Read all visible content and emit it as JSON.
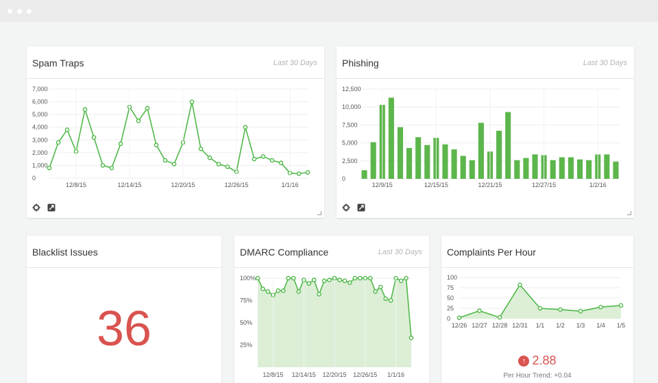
{
  "window": {
    "dots": 3
  },
  "spam_traps": {
    "title": "Spam Traps",
    "subtitle": "Last 30 Days",
    "icons": [
      "gear-icon",
      "expand-icon"
    ],
    "chart_data": {
      "type": "line",
      "title": "",
      "ylim": [
        0,
        7000
      ],
      "yticks": [
        "7,000",
        "6,000",
        "5,000",
        "4,000",
        "3,000",
        "2,000",
        "1,000",
        "0"
      ],
      "xticks": [
        "12/8/15",
        "12/14/15",
        "12/20/15",
        "12/26/15",
        "1/1/16"
      ],
      "xtick_positions": [
        3,
        9,
        15,
        21,
        27
      ],
      "values": [
        800,
        2800,
        3800,
        2100,
        5400,
        3200,
        1000,
        800,
        2700,
        5600,
        4500,
        5500,
        2600,
        1400,
        1100,
        2800,
        6000,
        2300,
        1600,
        1100,
        900,
        500,
        4000,
        1500,
        1700,
        1400,
        1200,
        400,
        350,
        450
      ],
      "color": "#4fb848"
    }
  },
  "phishing": {
    "title": "Phishing",
    "subtitle": "Last 30 Days",
    "icons": [
      "gear-icon",
      "expand-icon"
    ],
    "chart_data": {
      "type": "bar",
      "title": "",
      "ylim": [
        0,
        12500
      ],
      "yticks": [
        "12,500",
        "10,000",
        "7,500",
        "5,000",
        "2,500",
        "0"
      ],
      "xticks": [
        "12/9/15",
        "12/15/15",
        "12/21/15",
        "12/27/15",
        "1/2/16"
      ],
      "xtick_positions": [
        2,
        8,
        14,
        20,
        26
      ],
      "values": [
        1200,
        5100,
        10300,
        11300,
        7200,
        4300,
        5800,
        4700,
        5700,
        4800,
        4100,
        3200,
        2600,
        7800,
        3800,
        6700,
        9300,
        2600,
        2900,
        3400,
        3300,
        2600,
        3000,
        3000,
        2700,
        2600,
        3400,
        3400,
        2400
      ],
      "color": "#5cb64c"
    }
  },
  "blacklist": {
    "title": "Blacklist Issues",
    "value": "36"
  },
  "dmarc": {
    "title": "DMARC Compliance",
    "subtitle": "Last 30 Days",
    "chart_data": {
      "type": "area",
      "title": "",
      "ylim": [
        0,
        100
      ],
      "yticks": [
        "100%",
        "75%",
        "50%",
        "25%"
      ],
      "xticks": [
        "12/8/15",
        "12/14/15",
        "12/20/15",
        "12/26/15",
        "1/1/16"
      ],
      "xtick_positions": [
        3,
        9,
        15,
        21,
        27
      ],
      "values": [
        100,
        88,
        85,
        81,
        86,
        86,
        100,
        100,
        85,
        98,
        94,
        98,
        82,
        97,
        98,
        100,
        98,
        97,
        95,
        100,
        100,
        100,
        100,
        85,
        90,
        77,
        75,
        100,
        97,
        100,
        33
      ],
      "color": "#4fb848"
    }
  },
  "complaints": {
    "title": "Complaints Per Hour",
    "value": "2.88",
    "trend": "Per Hour Trend: +0.04",
    "chart_data": {
      "type": "area",
      "title": "",
      "ylim": [
        0,
        100
      ],
      "yticks": [
        "100",
        "75",
        "50",
        "25",
        "0"
      ],
      "xticks": [
        "12/26",
        "12/27",
        "12/28",
        "12/31",
        "1/1",
        "1/2",
        "1/3",
        "1/4",
        "1/5"
      ],
      "values": [
        2,
        19,
        3,
        82,
        25,
        22,
        18,
        28,
        32
      ],
      "color": "#4fb848"
    }
  }
}
